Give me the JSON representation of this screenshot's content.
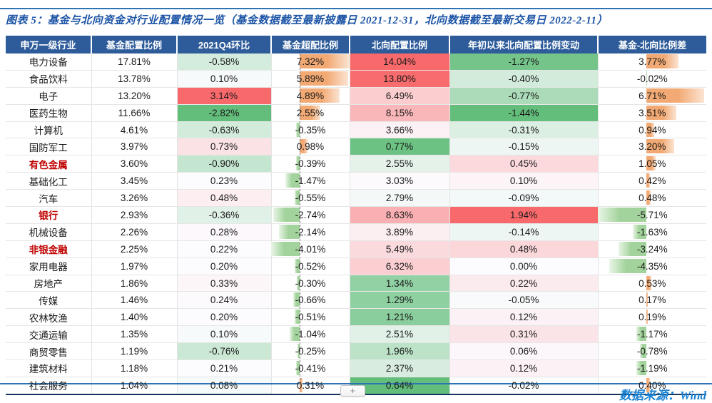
{
  "title": "图表 5：基金与北向资金对行业配置情况一览（基金数据截至最新披露日 2021-12-31，北向数据截至最新交易日 2022-2-11）",
  "footer": {
    "source": "数据来源：Wind",
    "add_button": "+"
  },
  "colors": {
    "header_bg": "#2E5C9A",
    "title_blue": "#1C54A6",
    "source_blue": "#1B82D2",
    "highlight_red": "#C00000",
    "scale_red": "#F8696B",
    "scale_white": "#FCFCFF",
    "scale_green": "#63BE7B",
    "bar_orange": "#F2A973",
    "bar_orange_fade": "#FBE4D2",
    "bar_green": "#A3D39C",
    "bar_green_fade": "#E9F5E6"
  },
  "table": {
    "headers": [
      "申万一级行业",
      "基金配置比例",
      "2021Q4环比",
      "基金超配比例",
      "北向配置比例",
      "年初以来北向配置比例变动",
      "基金-北向比例差"
    ],
    "rows": [
      {
        "industry": "电力设备",
        "highlight": false,
        "fund": "17.81%",
        "qoq": "-0.58%",
        "overweight": "7.32%",
        "north": "14.04%",
        "north_change": "-1.27%",
        "diff": "3.77%"
      },
      {
        "industry": "食品饮料",
        "highlight": false,
        "fund": "13.78%",
        "qoq": "0.10%",
        "overweight": "5.89%",
        "north": "13.80%",
        "north_change": "-0.40%",
        "diff": "-0.02%"
      },
      {
        "industry": "电子",
        "highlight": false,
        "fund": "13.20%",
        "qoq": "3.14%",
        "overweight": "4.89%",
        "north": "6.49%",
        "north_change": "-0.77%",
        "diff": "6.71%"
      },
      {
        "industry": "医药生物",
        "highlight": false,
        "fund": "11.66%",
        "qoq": "-2.82%",
        "overweight": "2.55%",
        "north": "8.15%",
        "north_change": "-1.44%",
        "diff": "3.51%"
      },
      {
        "industry": "计算机",
        "highlight": false,
        "fund": "4.61%",
        "qoq": "-0.63%",
        "overweight": "-0.35%",
        "north": "3.66%",
        "north_change": "-0.31%",
        "diff": "0.94%"
      },
      {
        "industry": "国防军工",
        "highlight": false,
        "fund": "3.97%",
        "qoq": "0.73%",
        "overweight": "0.98%",
        "north": "0.77%",
        "north_change": "-0.15%",
        "diff": "3.20%"
      },
      {
        "industry": "有色金属",
        "highlight": true,
        "fund": "3.60%",
        "qoq": "-0.90%",
        "overweight": "-0.39%",
        "north": "2.55%",
        "north_change": "0.45%",
        "diff": "1.05%"
      },
      {
        "industry": "基础化工",
        "highlight": false,
        "fund": "3.45%",
        "qoq": "0.23%",
        "overweight": "-1.47%",
        "north": "3.03%",
        "north_change": "0.10%",
        "diff": "0.42%"
      },
      {
        "industry": "汽车",
        "highlight": false,
        "fund": "3.26%",
        "qoq": "0.48%",
        "overweight": "-0.55%",
        "north": "2.79%",
        "north_change": "-0.09%",
        "diff": "0.48%"
      },
      {
        "industry": "银行",
        "highlight": true,
        "fund": "2.93%",
        "qoq": "-0.36%",
        "overweight": "-2.74%",
        "north": "8.63%",
        "north_change": "1.94%",
        "diff": "-5.71%"
      },
      {
        "industry": "机械设备",
        "highlight": false,
        "fund": "2.26%",
        "qoq": "0.28%",
        "overweight": "-2.14%",
        "north": "3.89%",
        "north_change": "-0.14%",
        "diff": "-1.63%"
      },
      {
        "industry": "非银金融",
        "highlight": true,
        "fund": "2.25%",
        "qoq": "0.22%",
        "overweight": "-4.01%",
        "north": "5.49%",
        "north_change": "0.48%",
        "diff": "-3.24%"
      },
      {
        "industry": "家用电器",
        "highlight": false,
        "fund": "1.97%",
        "qoq": "0.20%",
        "overweight": "-0.52%",
        "north": "6.32%",
        "north_change": "0.00%",
        "diff": "-4.35%"
      },
      {
        "industry": "房地产",
        "highlight": false,
        "fund": "1.86%",
        "qoq": "0.33%",
        "overweight": "-0.30%",
        "north": "1.34%",
        "north_change": "0.22%",
        "diff": "0.53%"
      },
      {
        "industry": "传媒",
        "highlight": false,
        "fund": "1.46%",
        "qoq": "0.24%",
        "overweight": "-0.66%",
        "north": "1.29%",
        "north_change": "-0.05%",
        "diff": "0.17%"
      },
      {
        "industry": "农林牧渔",
        "highlight": false,
        "fund": "1.40%",
        "qoq": "0.20%",
        "overweight": "-0.51%",
        "north": "1.21%",
        "north_change": "0.12%",
        "diff": "0.19%"
      },
      {
        "industry": "交通运输",
        "highlight": false,
        "fund": "1.35%",
        "qoq": "0.10%",
        "overweight": "-1.04%",
        "north": "2.51%",
        "north_change": "0.31%",
        "diff": "-1.17%"
      },
      {
        "industry": "商贸零售",
        "highlight": false,
        "fund": "1.19%",
        "qoq": "-0.76%",
        "overweight": "-0.25%",
        "north": "1.96%",
        "north_change": "0.06%",
        "diff": "-0.78%"
      },
      {
        "industry": "建筑材料",
        "highlight": false,
        "fund": "1.18%",
        "qoq": "0.21%",
        "overweight": "-0.41%",
        "north": "2.37%",
        "north_change": "0.12%",
        "diff": "-1.19%"
      },
      {
        "industry": "社会服务",
        "highlight": false,
        "fund": "1.04%",
        "qoq": "0.08%",
        "overweight": "0.31%",
        "north": "0.64%",
        "north_change": "-0.02%",
        "diff": "0.40%"
      }
    ]
  }
}
